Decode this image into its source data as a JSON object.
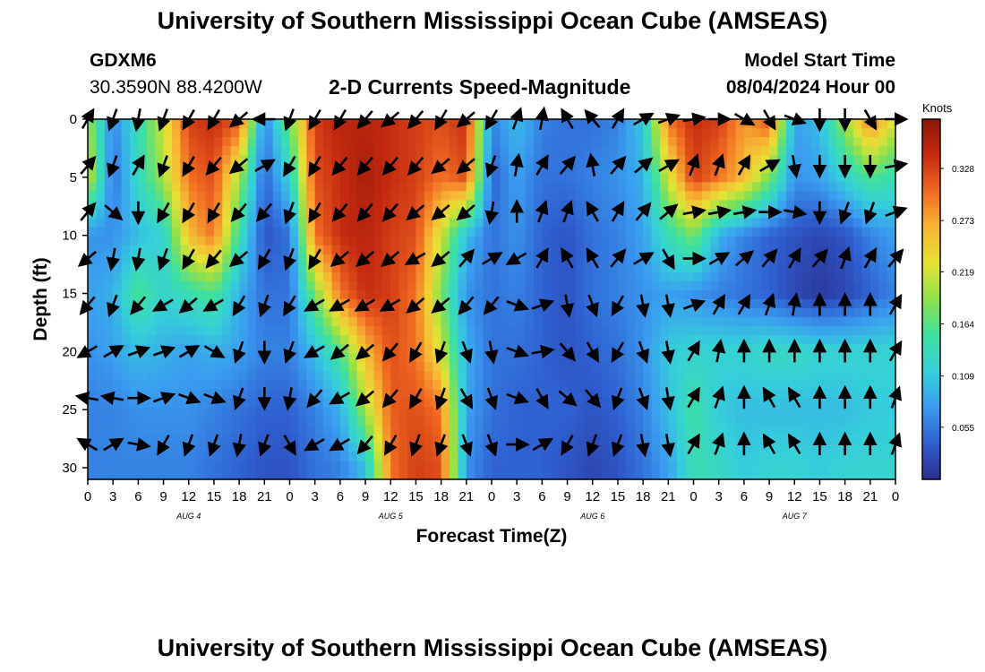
{
  "page": {
    "title_top": "University of Southern Mississippi Ocean Cube (AMSEAS)",
    "title_bottom": "University of Southern Mississippi Ocean Cube (AMSEAS)",
    "station_id": "GDXM6",
    "station_coords": "30.3590N  88.4200W",
    "subtitle": "2-D Currents Speed-Magnitude",
    "model_start_label": "Model Start Time",
    "model_start_value": "08/04/2024 Hour 00"
  },
  "chart_data": {
    "type": "heatmap",
    "xlabel": "Forecast Time(Z)",
    "ylabel": "Depth (ft)",
    "x_tick_labels": [
      "0",
      "3",
      "6",
      "9",
      "12",
      "15",
      "18",
      "21",
      "0",
      "3",
      "6",
      "9",
      "12",
      "15",
      "18",
      "21",
      "0",
      "3",
      "6",
      "9",
      "12",
      "15",
      "18",
      "21",
      "0",
      "3",
      "6",
      "9",
      "12",
      "15",
      "18",
      "21",
      "0"
    ],
    "x_range_hours": [
      0,
      96
    ],
    "day_labels": [
      {
        "label": "AUG 4",
        "hour": 12
      },
      {
        "label": "AUG 5",
        "hour": 36
      },
      {
        "label": "AUG 6",
        "hour": 60
      },
      {
        "label": "AUG 7",
        "hour": 84
      }
    ],
    "y_ticks": [
      0,
      5,
      10,
      15,
      20,
      25,
      30
    ],
    "y_range_ft": [
      0,
      31
    ],
    "y_inverted": true,
    "colorbar": {
      "title": "Knots",
      "tick_values": [
        0.055,
        0.109,
        0.164,
        0.219,
        0.273,
        0.328
      ],
      "tick_labels": [
        "0.055",
        "0.109",
        "0.164",
        "0.219",
        "0.273",
        "0.328"
      ],
      "min": 0.0,
      "max": 0.38,
      "colormap": [
        "#2b2c8e",
        "#2f5fd0",
        "#3a9cf0",
        "#35d0d9",
        "#3ee0a0",
        "#8fe04a",
        "#e5e235",
        "#f7b534",
        "#f06a22",
        "#c42a10",
        "#8c1607"
      ]
    },
    "speed_columns_hours": [
      0,
      3,
      6,
      9,
      12,
      15,
      18,
      21,
      24,
      27,
      30,
      33,
      36,
      39,
      42,
      45,
      48,
      51,
      54,
      57,
      60,
      63,
      66,
      69,
      72,
      75,
      78,
      81,
      84,
      87,
      90,
      93,
      96
    ],
    "speed_rows_ft": [
      0,
      5,
      10,
      15,
      20,
      25,
      30
    ],
    "speed_knots": [
      [
        0.2,
        0.06,
        0.14,
        0.22,
        0.33,
        0.34,
        0.32,
        0.06,
        0.18,
        0.33,
        0.35,
        0.35,
        0.34,
        0.33,
        0.32,
        0.34,
        0.06,
        0.1,
        0.06,
        0.05,
        0.05,
        0.06,
        0.11,
        0.3,
        0.34,
        0.33,
        0.28,
        0.32,
        0.08,
        0.1,
        0.2,
        0.3,
        0.22
      ],
      [
        0.22,
        0.05,
        0.13,
        0.2,
        0.3,
        0.32,
        0.2,
        0.04,
        0.12,
        0.32,
        0.34,
        0.36,
        0.34,
        0.33,
        0.3,
        0.32,
        0.04,
        0.08,
        0.05,
        0.05,
        0.06,
        0.07,
        0.09,
        0.22,
        0.33,
        0.3,
        0.26,
        0.18,
        0.07,
        0.08,
        0.12,
        0.16,
        0.14
      ],
      [
        0.07,
        0.07,
        0.1,
        0.12,
        0.26,
        0.3,
        0.14,
        0.03,
        0.05,
        0.3,
        0.34,
        0.35,
        0.33,
        0.32,
        0.22,
        0.1,
        0.05,
        0.07,
        0.04,
        0.03,
        0.05,
        0.06,
        0.08,
        0.14,
        0.18,
        0.09,
        0.06,
        0.04,
        0.03,
        0.02,
        0.03,
        0.06,
        0.08
      ],
      [
        0.08,
        0.09,
        0.16,
        0.12,
        0.14,
        0.16,
        0.09,
        0.05,
        0.05,
        0.18,
        0.3,
        0.34,
        0.33,
        0.3,
        0.18,
        0.07,
        0.05,
        0.06,
        0.04,
        0.03,
        0.05,
        0.06,
        0.07,
        0.08,
        0.07,
        0.06,
        0.05,
        0.04,
        0.02,
        0.01,
        0.02,
        0.04,
        0.06
      ],
      [
        0.07,
        0.08,
        0.1,
        0.09,
        0.08,
        0.09,
        0.08,
        0.06,
        0.06,
        0.1,
        0.16,
        0.26,
        0.32,
        0.3,
        0.22,
        0.09,
        0.05,
        0.05,
        0.04,
        0.03,
        0.04,
        0.05,
        0.07,
        0.11,
        0.12,
        0.12,
        0.12,
        0.13,
        0.13,
        0.12,
        0.12,
        0.12,
        0.12
      ],
      [
        0.06,
        0.06,
        0.07,
        0.07,
        0.07,
        0.06,
        0.05,
        0.04,
        0.04,
        0.06,
        0.09,
        0.2,
        0.31,
        0.32,
        0.3,
        0.08,
        0.05,
        0.04,
        0.04,
        0.04,
        0.03,
        0.04,
        0.06,
        0.1,
        0.15,
        0.11,
        0.1,
        0.1,
        0.1,
        0.1,
        0.1,
        0.11,
        0.11
      ],
      [
        0.06,
        0.06,
        0.06,
        0.06,
        0.06,
        0.05,
        0.04,
        0.03,
        0.03,
        0.05,
        0.06,
        0.1,
        0.3,
        0.33,
        0.32,
        0.07,
        0.04,
        0.04,
        0.04,
        0.03,
        0.02,
        0.03,
        0.05,
        0.08,
        0.14,
        0.13,
        0.11,
        0.12,
        0.12,
        0.11,
        0.12,
        0.12,
        0.12
      ]
    ],
    "vector_columns_hours": [
      0,
      3,
      6,
      9,
      12,
      15,
      18,
      21,
      24,
      27,
      30,
      33,
      36,
      39,
      42,
      45,
      48,
      51,
      54,
      57,
      60,
      63,
      66,
      69,
      72,
      75,
      78,
      81,
      84,
      87,
      90,
      93,
      96
    ],
    "vector_rows_ft": [
      0,
      4,
      8,
      12,
      16,
      20,
      24,
      28
    ],
    "vector_direction_deg": [
      [
        30,
        200,
        190,
        200,
        210,
        210,
        230,
        270,
        200,
        210,
        210,
        220,
        230,
        220,
        210,
        230,
        210,
        20,
        10,
        330,
        320,
        30,
        60,
        70,
        80,
        90,
        120,
        150,
        110,
        180,
        180,
        150,
        90
      ],
      [
        40,
        200,
        30,
        200,
        210,
        220,
        230,
        60,
        210,
        210,
        220,
        220,
        220,
        220,
        230,
        230,
        200,
        10,
        30,
        40,
        350,
        40,
        50,
        60,
        20,
        20,
        30,
        60,
        170,
        180,
        180,
        180,
        80
      ],
      [
        40,
        130,
        180,
        210,
        210,
        210,
        220,
        220,
        200,
        210,
        220,
        220,
        220,
        230,
        230,
        230,
        190,
        0,
        20,
        20,
        330,
        30,
        40,
        50,
        80,
        80,
        80,
        90,
        100,
        180,
        200,
        200,
        70
      ],
      [
        230,
        190,
        190,
        200,
        210,
        220,
        230,
        210,
        200,
        210,
        230,
        230,
        230,
        240,
        230,
        40,
        60,
        240,
        30,
        330,
        330,
        40,
        60,
        150,
        90,
        60,
        50,
        40,
        30,
        40,
        20,
        30,
        40
      ],
      [
        220,
        200,
        220,
        240,
        230,
        240,
        210,
        200,
        210,
        240,
        240,
        240,
        240,
        230,
        230,
        220,
        220,
        110,
        70,
        170,
        160,
        210,
        170,
        170,
        70,
        30,
        30,
        20,
        10,
        0,
        0,
        0,
        30
      ],
      [
        240,
        60,
        70,
        70,
        60,
        120,
        200,
        180,
        200,
        240,
        230,
        230,
        220,
        210,
        200,
        160,
        170,
        110,
        80,
        140,
        150,
        210,
        160,
        170,
        30,
        10,
        0,
        0,
        0,
        0,
        0,
        0,
        30
      ],
      [
        280,
        280,
        90,
        70,
        110,
        110,
        200,
        180,
        190,
        220,
        240,
        230,
        220,
        210,
        200,
        150,
        160,
        110,
        150,
        130,
        140,
        200,
        160,
        170,
        30,
        20,
        0,
        330,
        330,
        0,
        0,
        0,
        20
      ],
      [
        300,
        60,
        100,
        210,
        200,
        200,
        190,
        200,
        150,
        240,
        240,
        220,
        210,
        200,
        200,
        160,
        160,
        90,
        60,
        210,
        200,
        200,
        170,
        170,
        30,
        20,
        0,
        330,
        330,
        0,
        0,
        0,
        20
      ]
    ]
  }
}
